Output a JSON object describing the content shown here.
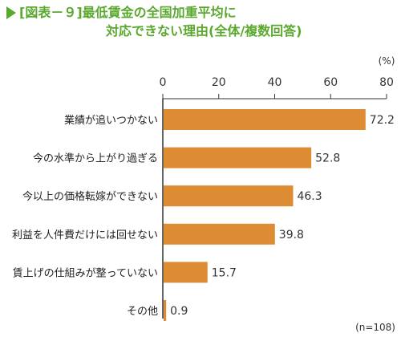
{
  "header": {
    "title_line1": "[図表－９]最低賃金の全国加重平均に",
    "title_line2": "対応できない理由(全体/複数回答)",
    "accent_color": "#5aa82e"
  },
  "chart_data": {
    "type": "bar",
    "orientation": "horizontal",
    "categories": [
      "業績が追いつかない",
      "今の水準から上がり過ぎる",
      "今以上の価格転嫁ができない",
      "利益を人件費だけには回せない",
      "賃上げの仕組みが整っていない",
      "その他"
    ],
    "values": [
      72.2,
      52.8,
      46.3,
      39.8,
      15.7,
      0.9
    ],
    "value_labels": [
      "72.2",
      "52.8",
      "46.3",
      "39.8",
      "15.7",
      "0.9"
    ],
    "xlim": [
      0,
      80
    ],
    "ticks": [
      "0",
      "20",
      "40",
      "60",
      "80"
    ],
    "unit": "(%)",
    "note": "(n=108)",
    "bar_color": "#de8c33",
    "grid": false
  }
}
